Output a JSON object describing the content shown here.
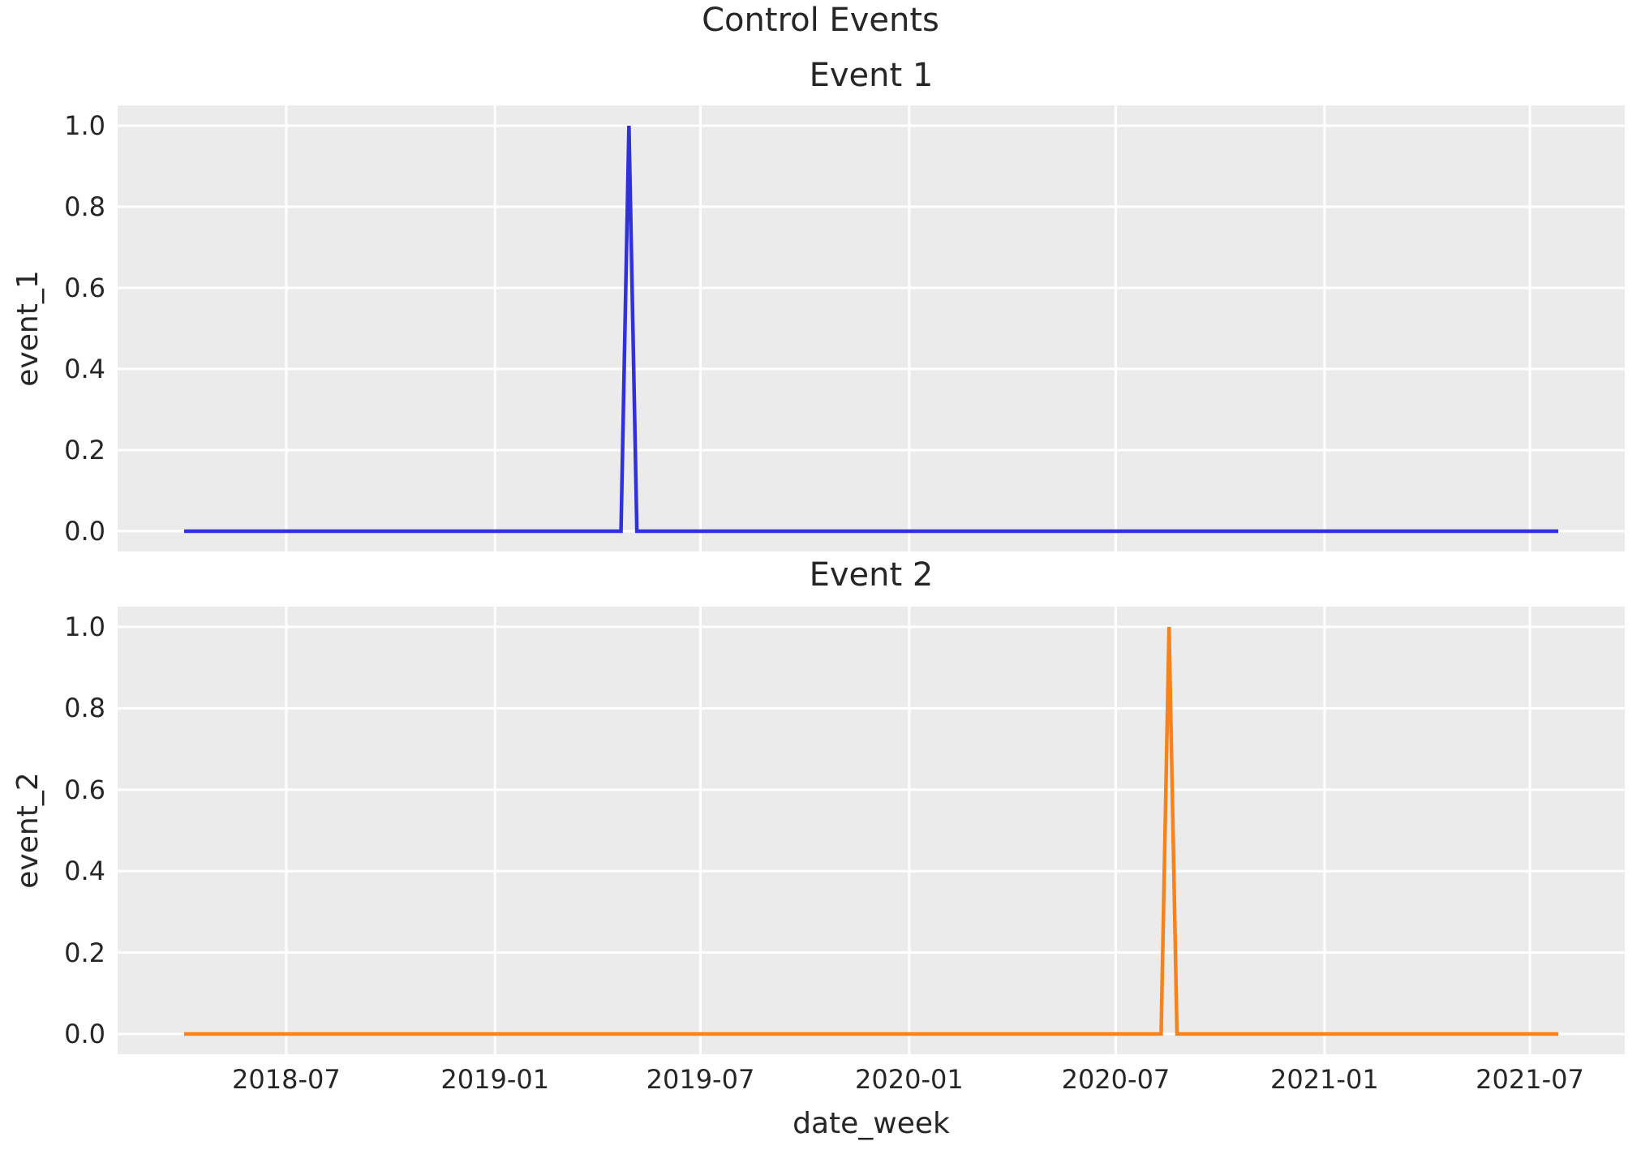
{
  "chart_data": {
    "type": "line",
    "suptitle": "Control Events",
    "x_axis": {
      "label": "date_week",
      "start": "2018-04-02",
      "end": "2021-07-26",
      "frequency": "weekly",
      "ticks": [
        {
          "label": "2018-07",
          "date": "2018-07-01"
        },
        {
          "label": "2019-01",
          "date": "2019-01-01"
        },
        {
          "label": "2019-07",
          "date": "2019-07-01"
        },
        {
          "label": "2020-01",
          "date": "2020-01-01"
        },
        {
          "label": "2020-07",
          "date": "2020-07-01"
        },
        {
          "label": "2021-01",
          "date": "2021-01-01"
        },
        {
          "label": "2021-07",
          "date": "2021-07-01"
        }
      ]
    },
    "y_axis": {
      "tick_labels": [
        "0.0",
        "0.2",
        "0.4",
        "0.6",
        "0.8",
        "1.0"
      ],
      "tick_values": [
        0.0,
        0.2,
        0.4,
        0.6,
        0.8,
        1.0
      ],
      "ylim": [
        -0.05,
        1.05
      ]
    },
    "subplots": [
      {
        "title": "Event 1",
        "ylabel": "event_1",
        "series": "event_1",
        "color": "#3030dd",
        "baseline_value": 0.0,
        "spike": {
          "date": "2019-04-29",
          "value": 1.0
        },
        "points": [
          [
            "2018-04-02",
            0.0
          ],
          [
            "2019-04-22",
            0.0
          ],
          [
            "2019-04-29",
            1.0
          ],
          [
            "2019-05-06",
            0.0
          ],
          [
            "2021-07-26",
            0.0
          ]
        ]
      },
      {
        "title": "Event 2",
        "ylabel": "event_2",
        "series": "event_2",
        "color": "#f8821b",
        "baseline_value": 0.0,
        "spike": {
          "date": "2020-08-17",
          "value": 1.0
        },
        "points": [
          [
            "2018-04-02",
            0.0
          ],
          [
            "2020-08-10",
            0.0
          ],
          [
            "2020-08-17",
            1.0
          ],
          [
            "2020-08-24",
            0.0
          ],
          [
            "2021-07-26",
            0.0
          ]
        ]
      }
    ],
    "styles": {
      "plot_bg": "#ebebeb",
      "grid_color": "#ffffff",
      "text_color": "#262626",
      "figure_bg": "#ffffff"
    },
    "legend": "none",
    "grid": "on"
  }
}
